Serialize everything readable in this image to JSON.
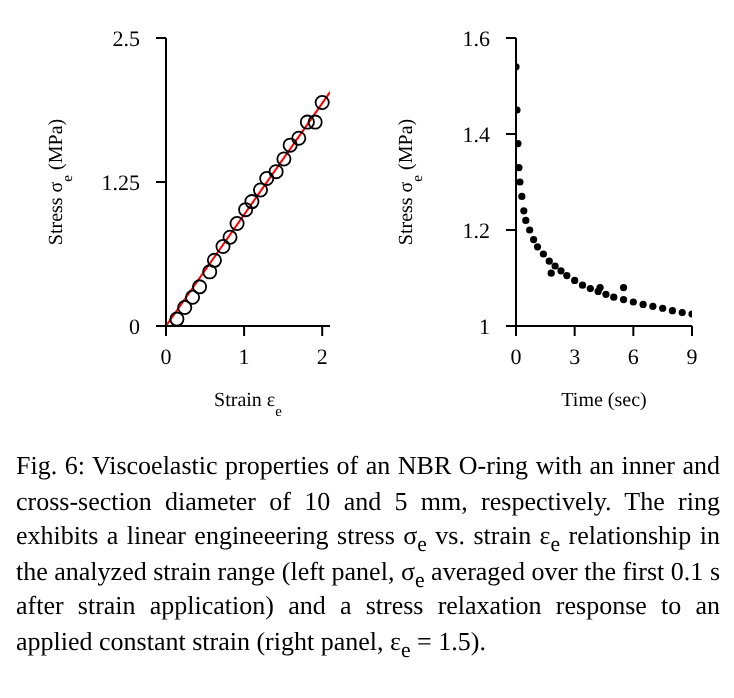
{
  "chart_data": [
    {
      "type": "scatter",
      "xlabel": "Strain ε$_{e}$",
      "ylabel": "Stress σ$_{e}$ (MPa)",
      "xlim": [
        0,
        2.1
      ],
      "xticks": [
        0,
        1,
        2
      ],
      "ylim": [
        0,
        2.5
      ],
      "yticks": [
        0,
        1.25,
        2.5
      ],
      "series": [
        {
          "color": "#000000",
          "marker": "circle",
          "x": [
            0.14,
            0.24,
            0.34,
            0.43,
            0.56,
            0.62,
            0.73,
            0.82,
            0.91,
            1.02,
            1.1,
            1.21,
            1.29,
            1.41,
            1.51,
            1.59,
            1.7,
            1.81,
            1.91,
            2.0
          ],
          "values": [
            0.06,
            0.16,
            0.25,
            0.34,
            0.47,
            0.57,
            0.69,
            0.77,
            0.89,
            1.01,
            1.08,
            1.18,
            1.28,
            1.34,
            1.45,
            1.57,
            1.63,
            1.77,
            1.77,
            1.94
          ]
        },
        {
          "type": "line",
          "color": "#ff0000",
          "marker": "none",
          "x": [
            0,
            2.1
          ],
          "values": [
            0,
            2.03
          ]
        }
      ]
    },
    {
      "type": "scatter",
      "xlabel": "Time (sec)",
      "ylabel": "Stress σ$_{e}$ (MPa)",
      "xlim": [
        0,
        9
      ],
      "xticks": [
        0,
        3,
        6,
        9
      ],
      "ylim": [
        1,
        1.6
      ],
      "yticks": [
        1,
        1.2,
        1.4,
        1.6
      ],
      "annotations": [
        "Fig. 6: Viscoelastic properties of an NBR O-ring with an inner and cross-section diameter of 10 and 5 mm, respectively. The ring exhibits a linear engineeering stress σ$_{e}$ vs. strain ε$_{e}$ relationship in the analyzed strain range (left panel, σ$_{e}$ averaged over the first 0.1 s after strain application) and a stress relaxation response to an applied constant strain (right panel, ε$_{e}$ = 1.5)."
      ],
      "series": [
        {
          "color": "#000000",
          "marker": "circle",
          "x": [
            0,
            0.05,
            0.1,
            0.15,
            0.2,
            0.3,
            0.4,
            0.5,
            0.7,
            0.9,
            1.1,
            1.4,
            1.7,
            1.8,
            2.0,
            2.3,
            2.6,
            3.0,
            3.4,
            3.8,
            4.2,
            4.3,
            4.6,
            5.0,
            5.5,
            5.5,
            6.0,
            6.5,
            7.0,
            7.5,
            8.0,
            8.5,
            9.0
          ],
          "values": [
            1.54,
            1.45,
            1.38,
            1.33,
            1.3,
            1.27,
            1.24,
            1.22,
            1.2,
            1.18,
            1.165,
            1.15,
            1.135,
            1.11,
            1.125,
            1.115,
            1.105,
            1.095,
            1.085,
            1.078,
            1.072,
            1.08,
            1.066,
            1.06,
            1.055,
            1.08,
            1.05,
            1.045,
            1.041,
            1.037,
            1.032,
            1.028,
            1.025
          ]
        }
      ]
    }
  ]
}
